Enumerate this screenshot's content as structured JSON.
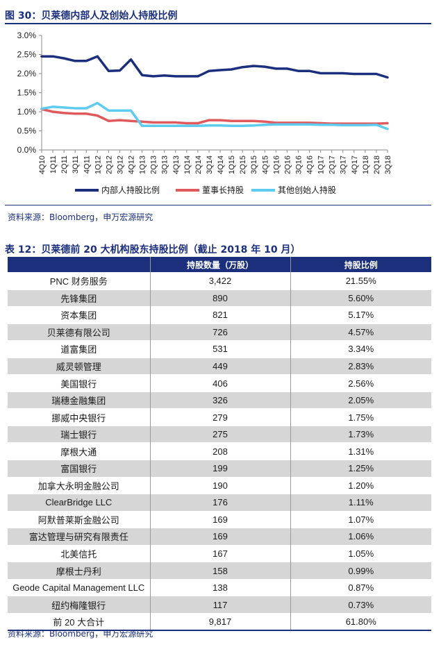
{
  "figure": {
    "title": "图 30：贝莱德内部人及创始人持股比例",
    "source": "资料来源：Bloomberg，申万宏源研究"
  },
  "chart_data": {
    "type": "line",
    "x": [
      "4Q10",
      "1Q11",
      "2Q11",
      "3Q11",
      "4Q11",
      "1Q12",
      "2Q12",
      "3Q12",
      "4Q12",
      "1Q13",
      "2Q13",
      "3Q13",
      "4Q13",
      "1Q14",
      "2Q14",
      "3Q14",
      "4Q14",
      "1Q15",
      "2Q15",
      "3Q15",
      "4Q15",
      "1Q16",
      "2Q16",
      "3Q16",
      "4Q16",
      "1Q17",
      "2Q17",
      "3Q17",
      "4Q17",
      "1Q18",
      "2Q18",
      "3Q18"
    ],
    "yticks": [
      "0.0%",
      "0.5%",
      "1.0%",
      "1.5%",
      "2.0%",
      "2.5%",
      "3.0%"
    ],
    "ylim": [
      0,
      3.0
    ],
    "series": [
      {
        "name": "内部人持股比例",
        "color": "#1b2f7d",
        "values": [
          2.45,
          2.45,
          2.4,
          2.33,
          2.33,
          2.45,
          2.07,
          2.08,
          2.37,
          1.96,
          1.93,
          1.95,
          1.93,
          1.93,
          1.93,
          2.07,
          2.09,
          2.11,
          2.17,
          2.2,
          2.18,
          2.13,
          2.13,
          2.07,
          2.07,
          2.01,
          2.01,
          2.01,
          1.99,
          1.99,
          1.99,
          1.9
        ]
      },
      {
        "name": "董事长持股",
        "color": "#e05a5d",
        "values": [
          1.07,
          1.0,
          0.97,
          0.95,
          0.95,
          0.9,
          0.76,
          0.78,
          0.76,
          0.74,
          0.72,
          0.72,
          0.72,
          0.7,
          0.7,
          0.78,
          0.78,
          0.76,
          0.76,
          0.76,
          0.74,
          0.71,
          0.71,
          0.71,
          0.71,
          0.7,
          0.69,
          0.69,
          0.69,
          0.69,
          0.69,
          0.7
        ]
      },
      {
        "name": "其他创始人持股",
        "color": "#5ecbf0",
        "values": [
          1.08,
          1.13,
          1.11,
          1.09,
          1.09,
          1.23,
          1.03,
          1.03,
          1.03,
          0.63,
          0.63,
          0.63,
          0.63,
          0.63,
          0.63,
          0.64,
          0.64,
          0.63,
          0.63,
          0.64,
          0.66,
          0.67,
          0.67,
          0.67,
          0.67,
          0.66,
          0.66,
          0.65,
          0.65,
          0.65,
          0.66,
          0.55
        ]
      }
    ]
  },
  "table": {
    "title": "表 12：贝莱德前 20 大机构股东持股比例（截止 2018 年 10 月）",
    "headers": [
      "",
      "持股数量（万股）",
      "持股比例"
    ],
    "rows": [
      [
        "PNC 财务服务",
        "3,422",
        "21.55%"
      ],
      [
        "先锋集团",
        "890",
        "5.60%"
      ],
      [
        "资本集团",
        "821",
        "5.17%"
      ],
      [
        "贝莱德有限公司",
        "726",
        "4.57%"
      ],
      [
        "道富集团",
        "531",
        "3.34%"
      ],
      [
        "威灵顿管理",
        "449",
        "2.83%"
      ],
      [
        "美国银行",
        "406",
        "2.56%"
      ],
      [
        "瑞穗金融集团",
        "326",
        "2.05%"
      ],
      [
        "挪威中央银行",
        "279",
        "1.75%"
      ],
      [
        "瑞士银行",
        "275",
        "1.73%"
      ],
      [
        "摩根大通",
        "208",
        "1.31%"
      ],
      [
        "富国银行",
        "199",
        "1.25%"
      ],
      [
        "加拿大永明金融公司",
        "190",
        "1.20%"
      ],
      [
        "ClearBridge LLC",
        "176",
        "1.11%"
      ],
      [
        "阿默普莱斯金融公司",
        "169",
        "1.07%"
      ],
      [
        "富达管理与研究有限责任",
        "169",
        "1.06%"
      ],
      [
        "北美信托",
        "167",
        "1.05%"
      ],
      [
        "摩根士丹利",
        "158",
        "0.99%"
      ],
      [
        "Geode Capital Management LLC",
        "138",
        "0.87%"
      ],
      [
        "纽约梅隆银行",
        "117",
        "0.73%"
      ],
      [
        "前 20 大合计",
        "9,817",
        "61.80%"
      ]
    ],
    "source": "资料来源：Bloomberg，申万宏源研究"
  }
}
